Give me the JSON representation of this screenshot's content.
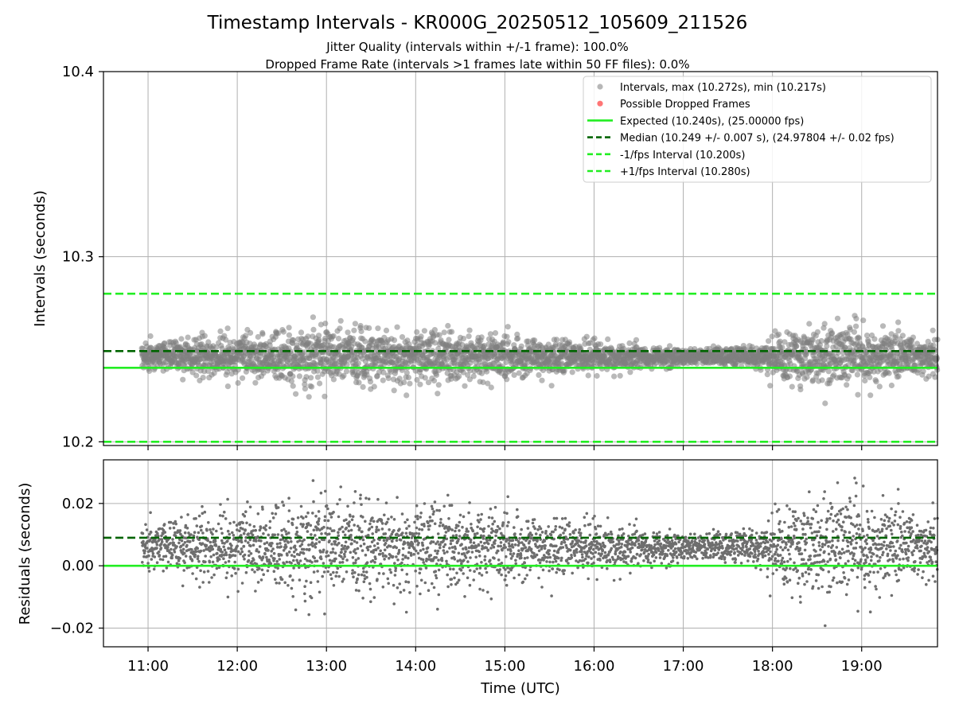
{
  "title": "Timestamp Intervals - KR000G_20250512_105609_211526",
  "subtitle_1": "Jitter Quality (intervals within +/-1 frame): 100.0%",
  "subtitle_2": "Dropped Frame Rate (intervals >1 frames late within 50 FF files): 0.0%",
  "colors": {
    "points": "#808080",
    "dropped": "#ff6666",
    "expected": "#22ee22",
    "median": "#006400",
    "fps_bounds": "#22ee22",
    "grid": "#b0b0b0"
  },
  "chart_data": [
    {
      "type": "scatter",
      "panel": "intervals",
      "xlabel": "",
      "ylabel": "Intervals (seconds)",
      "x_unit": "hours (UTC)",
      "xlim": [
        10.5,
        19.85
      ],
      "ylim": [
        10.198,
        10.4
      ],
      "yticks": [
        "10.2",
        "10.3",
        "10.4"
      ],
      "yticks_values": [
        10.2,
        10.3,
        10.4
      ],
      "grid": true,
      "legend_position": "top-right",
      "legend": [
        {
          "label": "Intervals, max (10.272s), min (10.217s)",
          "kind": "point",
          "color": "#999999"
        },
        {
          "label": "Possible Dropped Frames",
          "kind": "point",
          "color": "#ff6666"
        },
        {
          "label": "Expected (10.240s), (25.00000 fps)",
          "kind": "solid",
          "color": "#22ee22"
        },
        {
          "label": "Median (10.249 +/- 0.007 s), (24.97804 +/- 0.02 fps)",
          "kind": "dashed",
          "color": "#006400"
        },
        {
          "label": "-1/fps Interval (10.200s)",
          "kind": "dashed",
          "color": "#22ee22"
        },
        {
          "label": "+1/fps Interval (10.280s)",
          "kind": "dashed",
          "color": "#22ee22"
        }
      ],
      "expected": 10.24,
      "median": 10.249,
      "lower_bound": 10.2,
      "upper_bound": 10.28,
      "max": 10.272,
      "min": 10.217,
      "series_envelope": {
        "x_start": 10.93,
        "x_end": 19.85,
        "center": 10.246,
        "spread_x": [
          10.93,
          11.5,
          12.3,
          12.8,
          13.5,
          14.5,
          15.5,
          16.3,
          17.2,
          17.8,
          18.3,
          18.8,
          19.3,
          19.85
        ],
        "spread_y": [
          0.006,
          0.008,
          0.012,
          0.014,
          0.013,
          0.011,
          0.009,
          0.006,
          0.004,
          0.005,
          0.016,
          0.014,
          0.011,
          0.009
        ]
      },
      "series_count": 3300,
      "dropped_frames": []
    },
    {
      "type": "scatter",
      "panel": "residuals",
      "xlabel": "Time (UTC)",
      "ylabel": "Residuals (seconds)",
      "x_unit": "hours (UTC)",
      "xlim": [
        10.5,
        19.85
      ],
      "ylim": [
        -0.026,
        0.034
      ],
      "yticks": [
        "−0.02",
        "0.00",
        "0.02"
      ],
      "yticks_values": [
        -0.02,
        0.0,
        0.02
      ],
      "xticks": [
        "11:00",
        "12:00",
        "13:00",
        "14:00",
        "15:00",
        "16:00",
        "17:00",
        "18:00",
        "19:00"
      ],
      "xticks_values": [
        11,
        12,
        13,
        14,
        15,
        16,
        17,
        18,
        19
      ],
      "grid": true,
      "zero_line": 0.0,
      "median_line": 0.009,
      "series_count": 3300
    }
  ]
}
